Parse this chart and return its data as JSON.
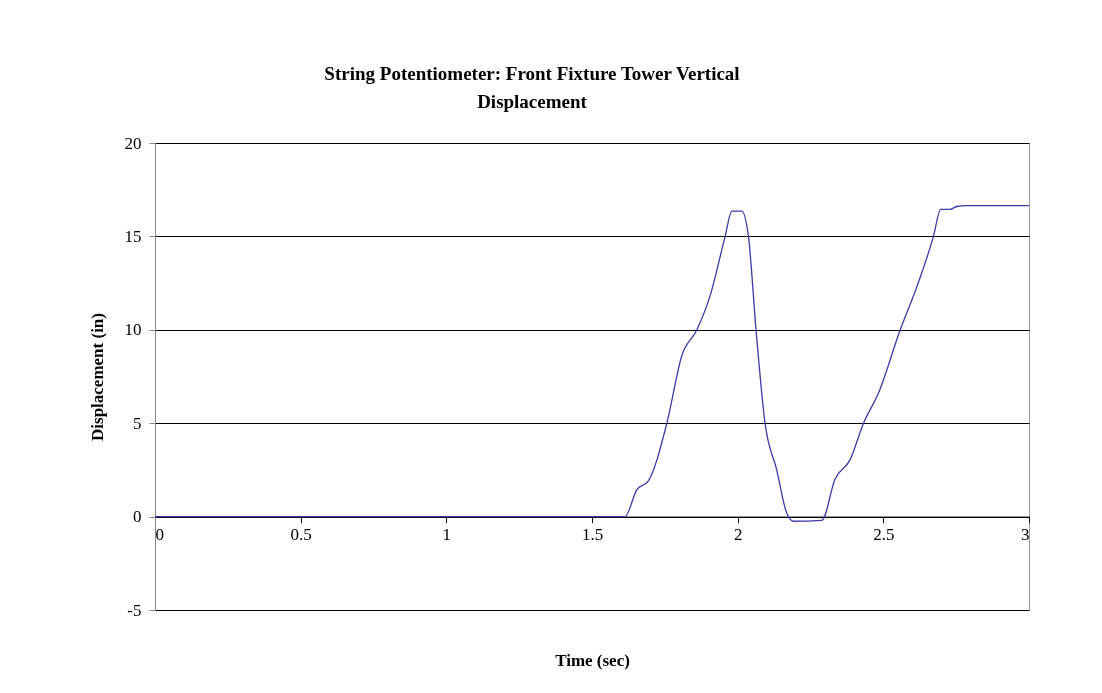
{
  "chart_data": {
    "type": "line",
    "title": "String Potentiometer: Front Fixture Tower Vertical Displacement",
    "xlabel": "Time (sec)",
    "ylabel": "Displacement (in)",
    "x": [
      0,
      0.5,
      1,
      1.5,
      1.613,
      1.654,
      1.693,
      1.757,
      1.808,
      1.86,
      1.905,
      1.957,
      1.98,
      2.014,
      2.037,
      2.063,
      2.094,
      2.134,
      2.168,
      2.191,
      2.289,
      2.334,
      2.386,
      2.432,
      2.483,
      2.558,
      2.615,
      2.672,
      2.697,
      2.729,
      2.752,
      2.786,
      3.0
    ],
    "series": [
      {
        "color": "#3c3ca8",
        "values": [
          0,
          0,
          0,
          0,
          0,
          1.45,
          1.9,
          5.0,
          8.6,
          10.0,
          11.8,
          15.0,
          16.35,
          16.35,
          15.0,
          10.0,
          5.0,
          2.5,
          0.2,
          -0.25,
          -0.2,
          2.0,
          3.05,
          5.0,
          6.6,
          10.0,
          12.3,
          15.0,
          16.45,
          16.45,
          16.6,
          16.65,
          16.65
        ]
      }
    ],
    "xlim": [
      0,
      3
    ],
    "xticks": [
      0,
      0.5,
      1,
      1.5,
      2,
      2.5,
      3
    ],
    "ylim": [
      -5,
      20
    ],
    "yticks": [
      -5,
      0,
      5,
      10,
      15,
      20
    ],
    "grid": "y",
    "legend": false,
    "marker": "none",
    "line_style": "solid"
  }
}
